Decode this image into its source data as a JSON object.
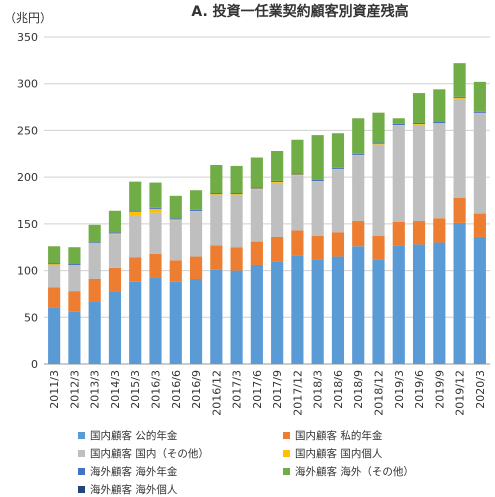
{
  "chart_data": {
    "type": "bar",
    "stacked": true,
    "title": "A. 投資一任業契約顧客別資産残高",
    "unit_label": "（兆円）",
    "ylim": [
      0,
      350
    ],
    "yticks": [
      0,
      50,
      100,
      150,
      200,
      250,
      300,
      350
    ],
    "grid": true,
    "legend_position": "bottom",
    "categories": [
      "2011/3",
      "2012/3",
      "2013/3",
      "2014/3",
      "2015/3",
      "2016/3",
      "2016/6",
      "2016/9",
      "2016/12",
      "2017/3",
      "2017/6",
      "2017/9",
      "2017/12",
      "2018/3",
      "2018/6",
      "2018/9",
      "2018/12",
      "2019/3",
      "2019/6",
      "2019/9",
      "2019/12",
      "2020/3"
    ],
    "series": [
      {
        "name": "国内顧客 公的年金",
        "color": "#5b9bd5",
        "values": [
          60,
          56,
          67,
          78,
          88,
          93,
          88,
          91,
          101,
          100,
          106,
          110,
          116,
          112,
          115,
          126,
          112,
          127,
          128,
          130,
          151,
          136
        ]
      },
      {
        "name": "国内顧客 私的年金",
        "color": "#ed7d31",
        "values": [
          22,
          22,
          24,
          25,
          26,
          25,
          23,
          24,
          26,
          25,
          25,
          26,
          27,
          25,
          26,
          27,
          25,
          25,
          25,
          26,
          27,
          25
        ]
      },
      {
        "name": "国内顧客 国内（その他）",
        "color": "#bfbfbf",
        "values": [
          24,
          27,
          38,
          36,
          45,
          44,
          43,
          48,
          54,
          56,
          56,
          58,
          59,
          58,
          67,
          70,
          98,
          103,
          103,
          101,
          106,
          107
        ]
      },
      {
        "name": "国内顧客 国内個人",
        "color": "#ffc000",
        "values": [
          0.8,
          0.8,
          0.8,
          0.8,
          4,
          4,
          0.8,
          0.8,
          0.8,
          0.8,
          0.8,
          0.8,
          0.8,
          0.8,
          0.8,
          0.8,
          0.8,
          0.8,
          0.8,
          0.8,
          0.8,
          0.8
        ]
      },
      {
        "name": "海外顧客 海外年金",
        "color": "#4472c4",
        "values": [
          1.2,
          1.2,
          1.2,
          1.2,
          1.2,
          1.2,
          1.2,
          1.2,
          1.2,
          1.2,
          1.2,
          1.2,
          1.2,
          1.2,
          1.2,
          1.2,
          1.2,
          1.2,
          1.2,
          1.2,
          1.2,
          1.2
        ]
      },
      {
        "name": "海外顧客 海外（その他）",
        "color": "#70ad47",
        "values": [
          18,
          18,
          18,
          23,
          31,
          27,
          24,
          21,
          30,
          29,
          32,
          32,
          36,
          48,
          37,
          38,
          32,
          6,
          32,
          35,
          36,
          32
        ]
      },
      {
        "name": "海外顧客 海外個人",
        "color": "#264478",
        "values": [
          0,
          0,
          0,
          0,
          0,
          0,
          0,
          0,
          0,
          0,
          0,
          0,
          0,
          0,
          0,
          0,
          0,
          0,
          0,
          0,
          0,
          0
        ]
      }
    ]
  }
}
